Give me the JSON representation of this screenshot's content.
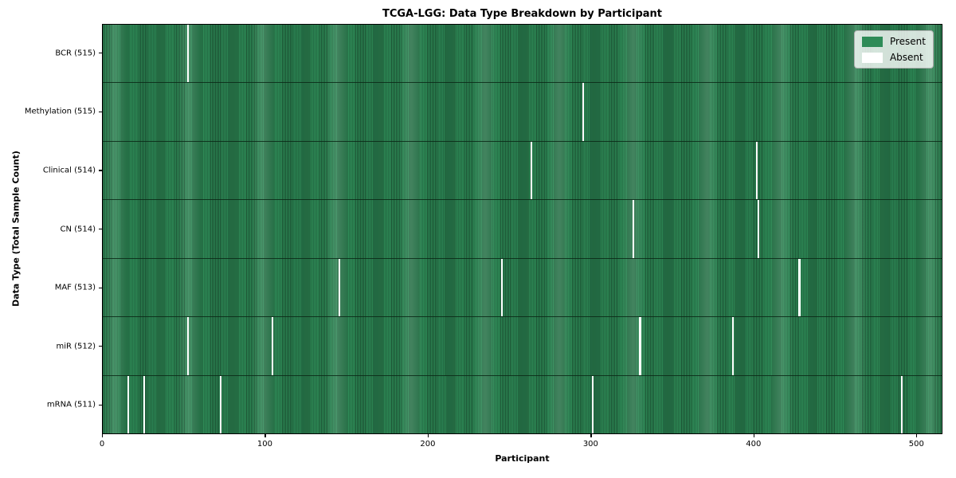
{
  "chart_data": {
    "type": "heatmap",
    "title": "TCGA-LGG: Data Type Breakdown by Participant",
    "xlabel": "Participant",
    "ylabel": "Data Type (Total Sample Count)",
    "total_participants": 516,
    "xlim": [
      0,
      516
    ],
    "x_ticks": [
      0,
      100,
      200,
      300,
      400,
      500
    ],
    "grid": false,
    "legend_position": "upper right",
    "rows": [
      {
        "label": "BCR (515)",
        "data_type": "BCR",
        "present_count": 515,
        "absent_count": 1,
        "absent_participants": [
          52
        ]
      },
      {
        "label": "Methylation (515)",
        "data_type": "Methylation",
        "present_count": 515,
        "absent_count": 1,
        "absent_participants": [
          295
        ]
      },
      {
        "label": "Clinical (514)",
        "data_type": "Clinical",
        "present_count": 514,
        "absent_count": 2,
        "absent_participants": [
          263,
          402
        ]
      },
      {
        "label": "CN (514)",
        "data_type": "CN",
        "present_count": 514,
        "absent_count": 2,
        "absent_participants": [
          326,
          403
        ]
      },
      {
        "label": "MAF (513)",
        "data_type": "MAF",
        "present_count": 513,
        "absent_count": 3,
        "absent_participants": [
          145,
          245,
          428
        ]
      },
      {
        "label": "miR (512)",
        "data_type": "miR",
        "present_count": 512,
        "absent_count": 4,
        "absent_participants": [
          52,
          104,
          330,
          387
        ]
      },
      {
        "label": "mRNA (511)",
        "data_type": "mRNA",
        "present_count": 511,
        "absent_count": 5,
        "absent_participants": [
          15,
          25,
          72,
          301,
          491
        ]
      }
    ],
    "legend": [
      {
        "label": "Present",
        "color": "#2e8b57"
      },
      {
        "label": "Absent",
        "color": "#ffffff"
      }
    ],
    "colors": {
      "present": "#2e8b57",
      "present_edge": "#1c5434",
      "absent": "#ffffff",
      "legend_bg": "#ffffffcc",
      "plot_border": "#000000"
    }
  }
}
